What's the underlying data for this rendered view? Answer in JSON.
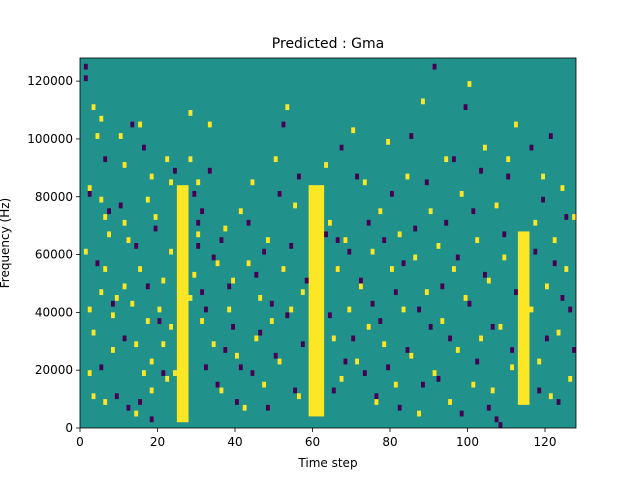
{
  "chart_data": {
    "type": "heatmap",
    "title": "Predicted : Gma",
    "xlabel": "Time step",
    "ylabel": "Frequency (Hz)",
    "xlim": [
      0,
      128
    ],
    "ylim": [
      0,
      128000
    ],
    "xticks": [
      0,
      20,
      40,
      60,
      80,
      100,
      120
    ],
    "yticks": [
      0,
      20000,
      40000,
      60000,
      80000,
      100000,
      120000
    ],
    "ytick_labels": [
      "0",
      "20000",
      "40000",
      "60000",
      "80000",
      "100000",
      "120000"
    ],
    "grid": false,
    "legend": "none",
    "levels": [
      "low",
      "mid",
      "high"
    ],
    "colors": {
      "low": "#440154",
      "mid": "#21918c",
      "high": "#fde725"
    },
    "background_level": "mid",
    "time_steps": 128,
    "frequency_bins": 64,
    "bin_hz": 2000,
    "high_bands": [
      {
        "x_from": 25,
        "x_to": 27,
        "y_from": 2000,
        "y_to": 82000
      },
      {
        "x_from": 59,
        "x_to": 62,
        "y_from": 4000,
        "y_to": 82000
      },
      {
        "x_from": 113,
        "x_to": 115,
        "y_from": 8000,
        "y_to": 66000
      }
    ],
    "high_cells": [
      [
        1,
        60000
      ],
      [
        2,
        82000
      ],
      [
        2,
        40000
      ],
      [
        2,
        18000
      ],
      [
        3,
        110000
      ],
      [
        3,
        32000
      ],
      [
        3,
        10000
      ],
      [
        4,
        100000
      ],
      [
        5,
        106000
      ],
      [
        5,
        78000
      ],
      [
        5,
        46000
      ],
      [
        6,
        72000
      ],
      [
        6,
        54000
      ],
      [
        6,
        8000
      ],
      [
        7,
        66000
      ],
      [
        8,
        38000
      ],
      [
        8,
        26000
      ],
      [
        9,
        44000
      ],
      [
        10,
        100000
      ],
      [
        11,
        90000
      ],
      [
        11,
        70000
      ],
      [
        11,
        48000
      ],
      [
        12,
        64000
      ],
      [
        13,
        42000
      ],
      [
        14,
        28000
      ],
      [
        14,
        4000
      ],
      [
        15,
        104000
      ],
      [
        15,
        54000
      ],
      [
        16,
        18000
      ],
      [
        17,
        78000
      ],
      [
        17,
        36000
      ],
      [
        18,
        86000
      ],
      [
        18,
        22000
      ],
      [
        18,
        12000
      ],
      [
        19,
        72000
      ],
      [
        20,
        40000
      ],
      [
        21,
        50000
      ],
      [
        21,
        28000
      ],
      [
        22,
        92000
      ],
      [
        22,
        16000
      ],
      [
        23,
        84000
      ],
      [
        23,
        60000
      ],
      [
        23,
        34000
      ],
      [
        24,
        18000
      ],
      [
        28,
        92000
      ],
      [
        28,
        108000
      ],
      [
        28,
        44000
      ],
      [
        29,
        52000
      ],
      [
        30,
        84000
      ],
      [
        30,
        66000
      ],
      [
        31,
        36000
      ],
      [
        33,
        104000
      ],
      [
        34,
        28000
      ],
      [
        35,
        56000
      ],
      [
        36,
        12000
      ],
      [
        37,
        68000
      ],
      [
        38,
        40000
      ],
      [
        39,
        50000
      ],
      [
        40,
        24000
      ],
      [
        41,
        74000
      ],
      [
        42,
        6000
      ],
      [
        43,
        56000
      ],
      [
        44,
        84000
      ],
      [
        45,
        30000
      ],
      [
        46,
        44000
      ],
      [
        47,
        14000
      ],
      [
        48,
        64000
      ],
      [
        49,
        36000
      ],
      [
        50,
        92000
      ],
      [
        51,
        22000
      ],
      [
        52,
        54000
      ],
      [
        53,
        110000
      ],
      [
        54,
        40000
      ],
      [
        55,
        76000
      ],
      [
        56,
        10000
      ],
      [
        57,
        46000
      ],
      [
        63,
        90000
      ],
      [
        64,
        70000
      ],
      [
        65,
        30000
      ],
      [
        66,
        54000
      ],
      [
        67,
        16000
      ],
      [
        68,
        64000
      ],
      [
        69,
        40000
      ],
      [
        70,
        102000
      ],
      [
        71,
        22000
      ],
      [
        72,
        48000
      ],
      [
        73,
        84000
      ],
      [
        74,
        34000
      ],
      [
        75,
        60000
      ],
      [
        76,
        8000
      ],
      [
        77,
        74000
      ],
      [
        78,
        28000
      ],
      [
        79,
        98000
      ],
      [
        80,
        54000
      ],
      [
        81,
        14000
      ],
      [
        82,
        66000
      ],
      [
        83,
        40000
      ],
      [
        84,
        86000
      ],
      [
        85,
        24000
      ],
      [
        86,
        58000
      ],
      [
        87,
        4000
      ],
      [
        88,
        112000
      ],
      [
        89,
        46000
      ],
      [
        90,
        74000
      ],
      [
        91,
        18000
      ],
      [
        92,
        62000
      ],
      [
        93,
        36000
      ],
      [
        94,
        92000
      ],
      [
        95,
        8000
      ],
      [
        96,
        54000
      ],
      [
        97,
        26000
      ],
      [
        98,
        80000
      ],
      [
        99,
        44000
      ],
      [
        100,
        118000
      ],
      [
        101,
        14000
      ],
      [
        102,
        64000
      ],
      [
        103,
        30000
      ],
      [
        104,
        96000
      ],
      [
        105,
        50000
      ],
      [
        106,
        12000
      ],
      [
        107,
        76000
      ],
      [
        108,
        34000
      ],
      [
        109,
        58000
      ],
      [
        110,
        92000
      ],
      [
        111,
        20000
      ],
      [
        112,
        104000
      ],
      [
        116,
        40000
      ],
      [
        117,
        70000
      ],
      [
        118,
        22000
      ],
      [
        119,
        86000
      ],
      [
        120,
        48000
      ],
      [
        121,
        10000
      ],
      [
        122,
        64000
      ],
      [
        123,
        32000
      ],
      [
        124,
        82000
      ],
      [
        125,
        54000
      ],
      [
        126,
        16000
      ],
      [
        127,
        72000
      ]
    ],
    "low_cells": [
      [
        1,
        124000
      ],
      [
        1,
        120000
      ],
      [
        2,
        80000
      ],
      [
        4,
        56000
      ],
      [
        5,
        20000
      ],
      [
        6,
        92000
      ],
      [
        7,
        74000
      ],
      [
        8,
        42000
      ],
      [
        9,
        10000
      ],
      [
        10,
        76000
      ],
      [
        11,
        30000
      ],
      [
        12,
        6000
      ],
      [
        13,
        104000
      ],
      [
        14,
        62000
      ],
      [
        15,
        8000
      ],
      [
        16,
        96000
      ],
      [
        17,
        48000
      ],
      [
        18,
        2000
      ],
      [
        19,
        68000
      ],
      [
        20,
        36000
      ],
      [
        21,
        18000
      ],
      [
        24,
        88000
      ],
      [
        29,
        80000
      ],
      [
        30,
        70000
      ],
      [
        30,
        62000
      ],
      [
        31,
        46000
      ],
      [
        31,
        74000
      ],
      [
        32,
        40000
      ],
      [
        32,
        20000
      ],
      [
        33,
        88000
      ],
      [
        34,
        58000
      ],
      [
        35,
        14000
      ],
      [
        36,
        64000
      ],
      [
        37,
        26000
      ],
      [
        38,
        48000
      ],
      [
        39,
        34000
      ],
      [
        40,
        8000
      ],
      [
        41,
        20000
      ],
      [
        43,
        70000
      ],
      [
        44,
        18000
      ],
      [
        45,
        52000
      ],
      [
        46,
        32000
      ],
      [
        47,
        60000
      ],
      [
        48,
        6000
      ],
      [
        49,
        42000
      ],
      [
        50,
        24000
      ],
      [
        51,
        80000
      ],
      [
        52,
        104000
      ],
      [
        53,
        38000
      ],
      [
        54,
        62000
      ],
      [
        55,
        12000
      ],
      [
        56,
        86000
      ],
      [
        57,
        28000
      ],
      [
        58,
        50000
      ],
      [
        63,
        66000
      ],
      [
        64,
        38000
      ],
      [
        65,
        12000
      ],
      [
        66,
        64000
      ],
      [
        67,
        96000
      ],
      [
        68,
        22000
      ],
      [
        69,
        60000
      ],
      [
        70,
        30000
      ],
      [
        71,
        86000
      ],
      [
        72,
        50000
      ],
      [
        73,
        18000
      ],
      [
        74,
        70000
      ],
      [
        75,
        42000
      ],
      [
        76,
        10000
      ],
      [
        77,
        36000
      ],
      [
        78,
        64000
      ],
      [
        79,
        20000
      ],
      [
        80,
        80000
      ],
      [
        81,
        46000
      ],
      [
        82,
        6000
      ],
      [
        83,
        56000
      ],
      [
        84,
        26000
      ],
      [
        85,
        100000
      ],
      [
        86,
        68000
      ],
      [
        87,
        40000
      ],
      [
        88,
        14000
      ],
      [
        89,
        84000
      ],
      [
        90,
        34000
      ],
      [
        91,
        124000
      ],
      [
        92,
        16000
      ],
      [
        93,
        48000
      ],
      [
        94,
        70000
      ],
      [
        95,
        30000
      ],
      [
        96,
        92000
      ],
      [
        97,
        58000
      ],
      [
        98,
        4000
      ],
      [
        99,
        110000
      ],
      [
        100,
        42000
      ],
      [
        101,
        74000
      ],
      [
        102,
        22000
      ],
      [
        103,
        88000
      ],
      [
        104,
        52000
      ],
      [
        105,
        6000
      ],
      [
        106,
        34000
      ],
      [
        107,
        2000
      ],
      [
        108,
        0
      ],
      [
        109,
        66000
      ],
      [
        110,
        86000
      ],
      [
        111,
        26000
      ],
      [
        112,
        46000
      ],
      [
        116,
        96000
      ],
      [
        117,
        60000
      ],
      [
        118,
        12000
      ],
      [
        119,
        78000
      ],
      [
        120,
        30000
      ],
      [
        121,
        100000
      ],
      [
        122,
        56000
      ],
      [
        123,
        8000
      ],
      [
        124,
        44000
      ],
      [
        125,
        72000
      ],
      [
        126,
        40000
      ],
      [
        127,
        26000
      ]
    ]
  }
}
